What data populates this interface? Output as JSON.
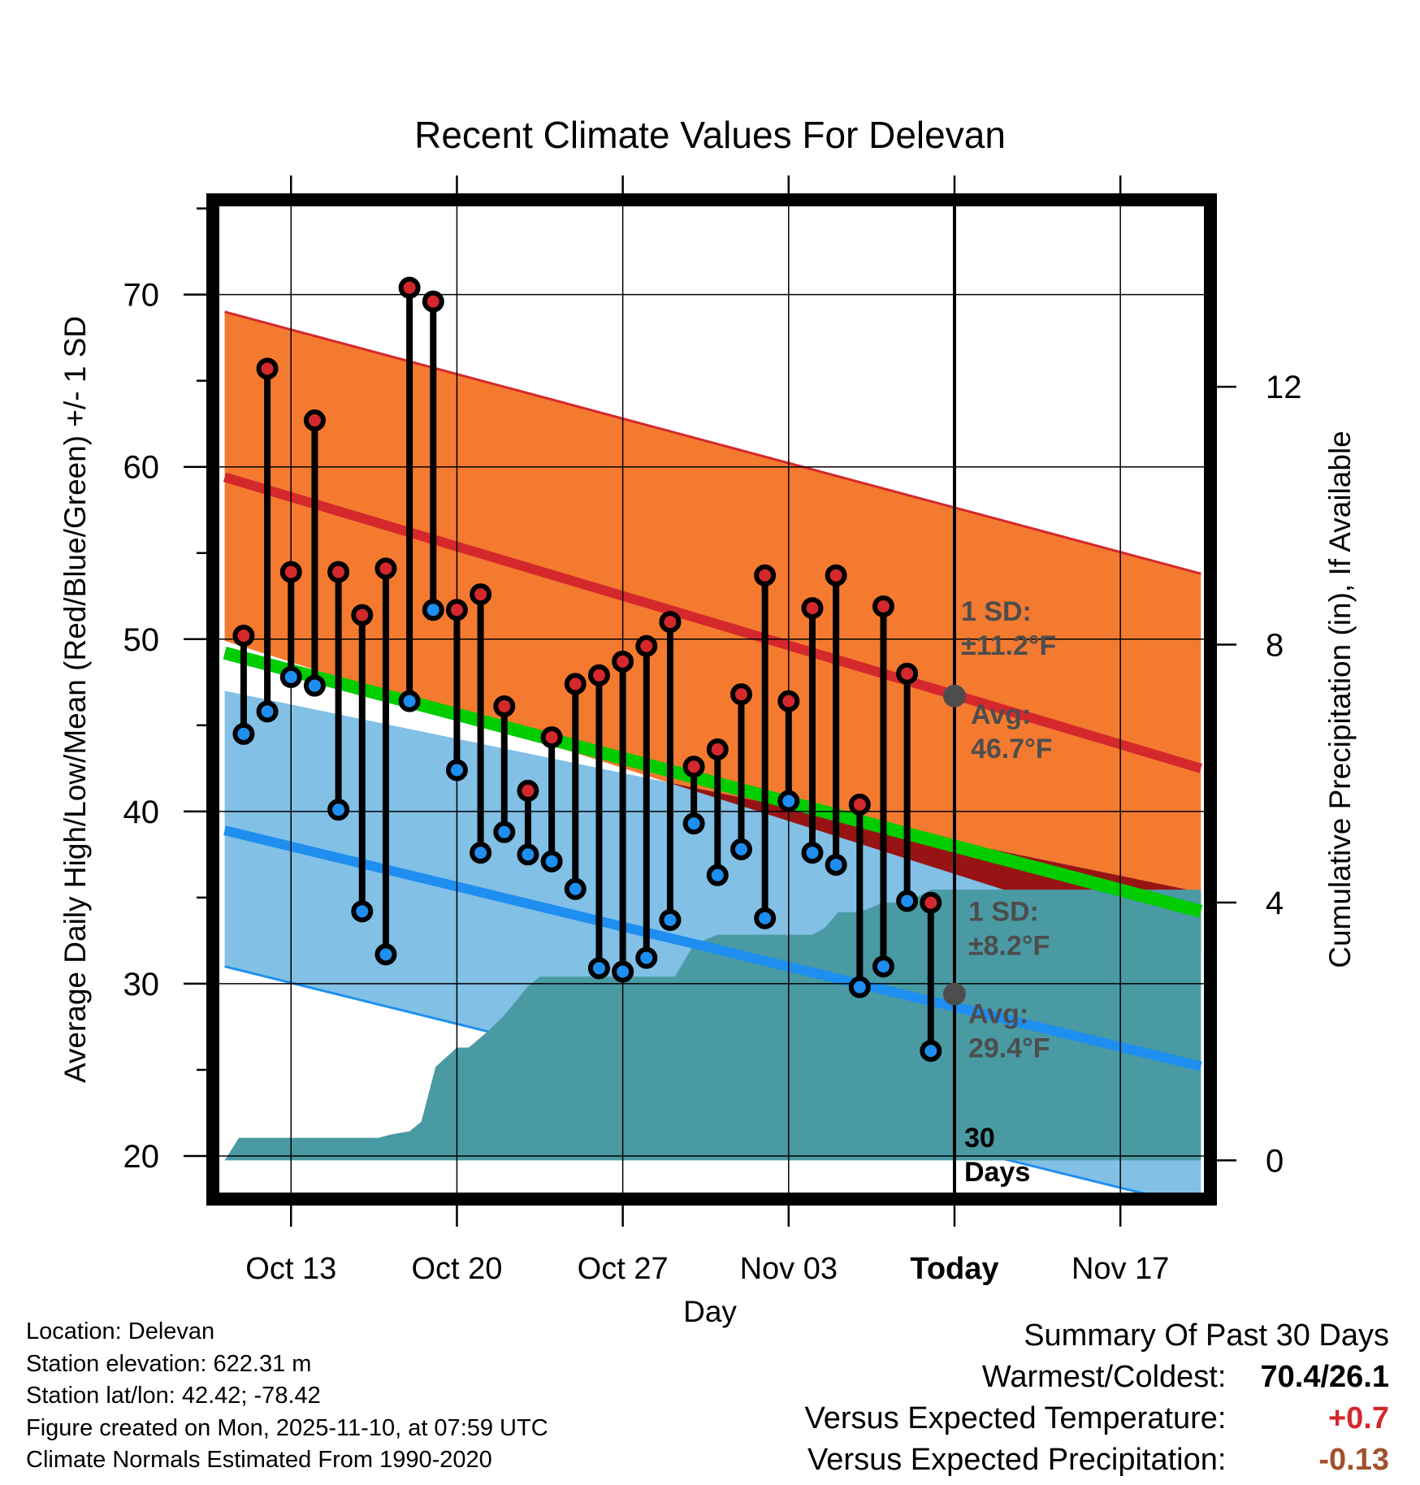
{
  "colors": {
    "upper_band": "#f47a30",
    "upper_band_edge": "#d4282c",
    "mean_high_line": "#d4282c",
    "lower_band": "#82c0e6",
    "lower_band_edge": "#1e8ef0",
    "mean_low_line": "#1e8ef0",
    "mean_line": "#00cc00",
    "overlap": "#981414",
    "precip_fill": "#4a9aa3",
    "high_dot": "#d4282c",
    "low_dot": "#1e8ef0",
    "annotation_grey": "#4d4d4d",
    "plus_anomaly": "#d4282c",
    "minus_anomaly": "#a0522d"
  },
  "chart_data": {
    "type": "line",
    "title": "Recent Climate Values For Delevan",
    "xlabel": "Day",
    "ylabel": "Average Daily High/Low/Mean (Red/Blue/Green) +/- 1 SD",
    "y2label": "Cumulative Precipitation (in), If Available",
    "ylim": [
      17.5,
      75.5
    ],
    "y2lim": [
      -0.6,
      14.9
    ],
    "yticks": [
      20,
      30,
      40,
      50,
      60,
      70
    ],
    "y2ticks": [
      0,
      4,
      8,
      12
    ],
    "xlim": [
      -3.3,
      38.8
    ],
    "xticks": [
      {
        "day": 0,
        "label": "Oct 13"
      },
      {
        "day": 7,
        "label": "Oct 20"
      },
      {
        "day": 14,
        "label": "Oct 27"
      },
      {
        "day": 21,
        "label": "Nov 03"
      },
      {
        "day": 28,
        "label": "Today"
      },
      {
        "day": 35,
        "label": "Nov 17"
      }
    ],
    "today_day": 28,
    "grid": true,
    "normals": {
      "days": [
        -2.8,
        38.4
      ],
      "mean_high": [
        59.4,
        42.5
      ],
      "mean_high_plus_sd": [
        69.0,
        53.8
      ],
      "mean_low": [
        38.9,
        25.2
      ],
      "mean_low_minus_sd": [
        31.0,
        17.0
      ],
      "mean": [
        49.2,
        34.2
      ],
      "high_band_lower_edge": [
        49.9,
        31.8
      ],
      "low_band_upper_edge": [
        47.0,
        35.3
      ]
    },
    "series": [
      {
        "name": "Daily High",
        "days": [
          -2,
          -1,
          0,
          1,
          2,
          3,
          4,
          5,
          6,
          7,
          8,
          9,
          10,
          11,
          12,
          13,
          14,
          15,
          16,
          17,
          18,
          19,
          20,
          21,
          22,
          23,
          24,
          25,
          26,
          27
        ],
        "values": [
          50.2,
          65.7,
          53.9,
          62.7,
          53.9,
          51.4,
          54.1,
          70.4,
          69.6,
          51.7,
          52.6,
          46.1,
          41.2,
          44.3,
          47.4,
          47.9,
          48.7,
          49.6,
          51.0,
          42.6,
          43.6,
          46.8,
          53.7,
          46.4,
          51.8,
          53.7,
          40.4,
          51.9,
          48.0,
          34.7
        ]
      },
      {
        "name": "Daily Low",
        "days": [
          -2,
          -1,
          0,
          1,
          2,
          3,
          4,
          5,
          6,
          7,
          8,
          9,
          10,
          11,
          12,
          13,
          14,
          15,
          16,
          17,
          18,
          19,
          20,
          21,
          22,
          23,
          24,
          25,
          26,
          27
        ],
        "values": [
          44.5,
          45.8,
          47.8,
          47.3,
          40.1,
          34.2,
          31.7,
          46.4,
          51.7,
          42.4,
          37.6,
          38.8,
          37.5,
          37.1,
          35.5,
          30.9,
          30.7,
          31.5,
          33.7,
          39.3,
          36.3,
          37.8,
          33.8,
          40.6,
          37.6,
          36.9,
          29.8,
          31.0,
          34.8,
          26.1
        ]
      },
      {
        "name": "Cumulative Precipitation",
        "days": [
          -2.8,
          -2.2,
          3.7,
          4.2,
          5.0,
          5.5,
          6.1,
          7.0,
          7.5,
          8.3,
          9.0,
          10.0,
          10.5,
          11.0,
          13.5,
          16.2,
          17.0,
          18.0,
          19.0,
          20.0,
          21.0,
          22.0,
          22.5,
          23.1,
          24.0,
          25.0,
          26.0,
          26.5,
          27.0,
          28.0,
          38.4
        ],
        "values": [
          0.0,
          0.35,
          0.35,
          0.4,
          0.45,
          0.6,
          1.45,
          1.75,
          1.75,
          2.0,
          2.25,
          2.7,
          2.85,
          2.85,
          2.85,
          2.85,
          3.35,
          3.5,
          3.5,
          3.5,
          3.5,
          3.5,
          3.6,
          3.85,
          3.85,
          4.0,
          4.0,
          4.1,
          4.2,
          4.2,
          4.2
        ]
      }
    ],
    "annotations": {
      "high_sd": {
        "line1": "1 SD:",
        "line2": "±11.2°F"
      },
      "high_avg": {
        "line1": "Avg:",
        "line2": "46.7°F",
        "value": 46.7
      },
      "low_sd": {
        "line1": "1 SD:",
        "line2": "±8.2°F"
      },
      "low_avg": {
        "line1": "Avg:",
        "line2": "29.4°F",
        "value": 29.4
      },
      "period": {
        "line1": "30",
        "line2": "Days"
      }
    }
  },
  "info": {
    "location": "Location: Delevan",
    "elevation": "Station elevation: 622.31 m",
    "latlon": "Station lat/lon: 42.42; -78.42",
    "created": "Figure created on Mon, 2025-11-10, at 07:59 UTC",
    "normals": "Climate Normals Estimated From 1990-2020"
  },
  "summary": {
    "title": "Summary Of Past 30 Days",
    "warmest_label": "Warmest/Coldest:",
    "warmest_value": "70.4/26.1",
    "temp_label": "Versus Expected Temperature:",
    "temp_value": "+0.7",
    "precip_label": "Versus Expected Precipitation:",
    "precip_value": "-0.13"
  }
}
